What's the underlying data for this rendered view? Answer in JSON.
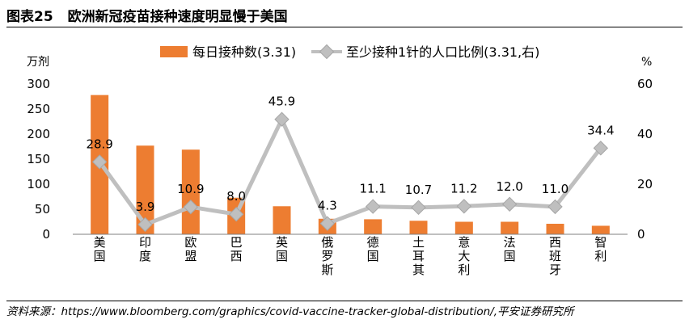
{
  "figure": {
    "label": "图表25",
    "title": "欧洲新冠疫苗接种速度明显慢于美国",
    "source": "资料来源：https://www.bloomberg.com/graphics/covid-vaccine-tracker-global-distribution/,平安证券研究所"
  },
  "chart_data": {
    "type": "bar",
    "categories": [
      "美国",
      "印度",
      "欧盟",
      "巴西",
      "英国",
      "俄罗斯",
      "德国",
      "土耳其",
      "意大利",
      "法国",
      "西班牙",
      "智利"
    ],
    "series": [
      {
        "name": "每日接种数(3.31)",
        "type": "bar",
        "axis": "left",
        "color": "#ED7D31",
        "values": [
          278,
          177,
          169,
          73,
          56,
          31,
          30,
          27,
          25,
          25,
          21,
          17
        ]
      },
      {
        "name": "至少接种1针的人口比例(3.31,右)",
        "type": "line",
        "axis": "right",
        "color": "#BFBFBF",
        "marker": "diamond",
        "values": [
          28.9,
          3.9,
          10.9,
          8.0,
          45.9,
          4.3,
          11.1,
          10.7,
          11.2,
          12.0,
          11.0,
          34.4
        ],
        "data_labels": [
          "28.9",
          "3.9",
          "10.9",
          "8.0",
          "45.9",
          "4.3",
          "11.1",
          "10.7",
          "11.2",
          "12.0",
          "11.0",
          "34.4"
        ]
      }
    ],
    "y_left": {
      "unit": "万剂",
      "ylim": [
        0,
        300
      ],
      "ticks": [
        "0",
        "50",
        "100",
        "150",
        "200",
        "250",
        "300"
      ]
    },
    "y_right": {
      "unit": "%",
      "ylim": [
        0,
        60
      ],
      "ticks": [
        "0",
        "20",
        "40",
        "60"
      ]
    },
    "legend_position": "top",
    "grid": false
  }
}
